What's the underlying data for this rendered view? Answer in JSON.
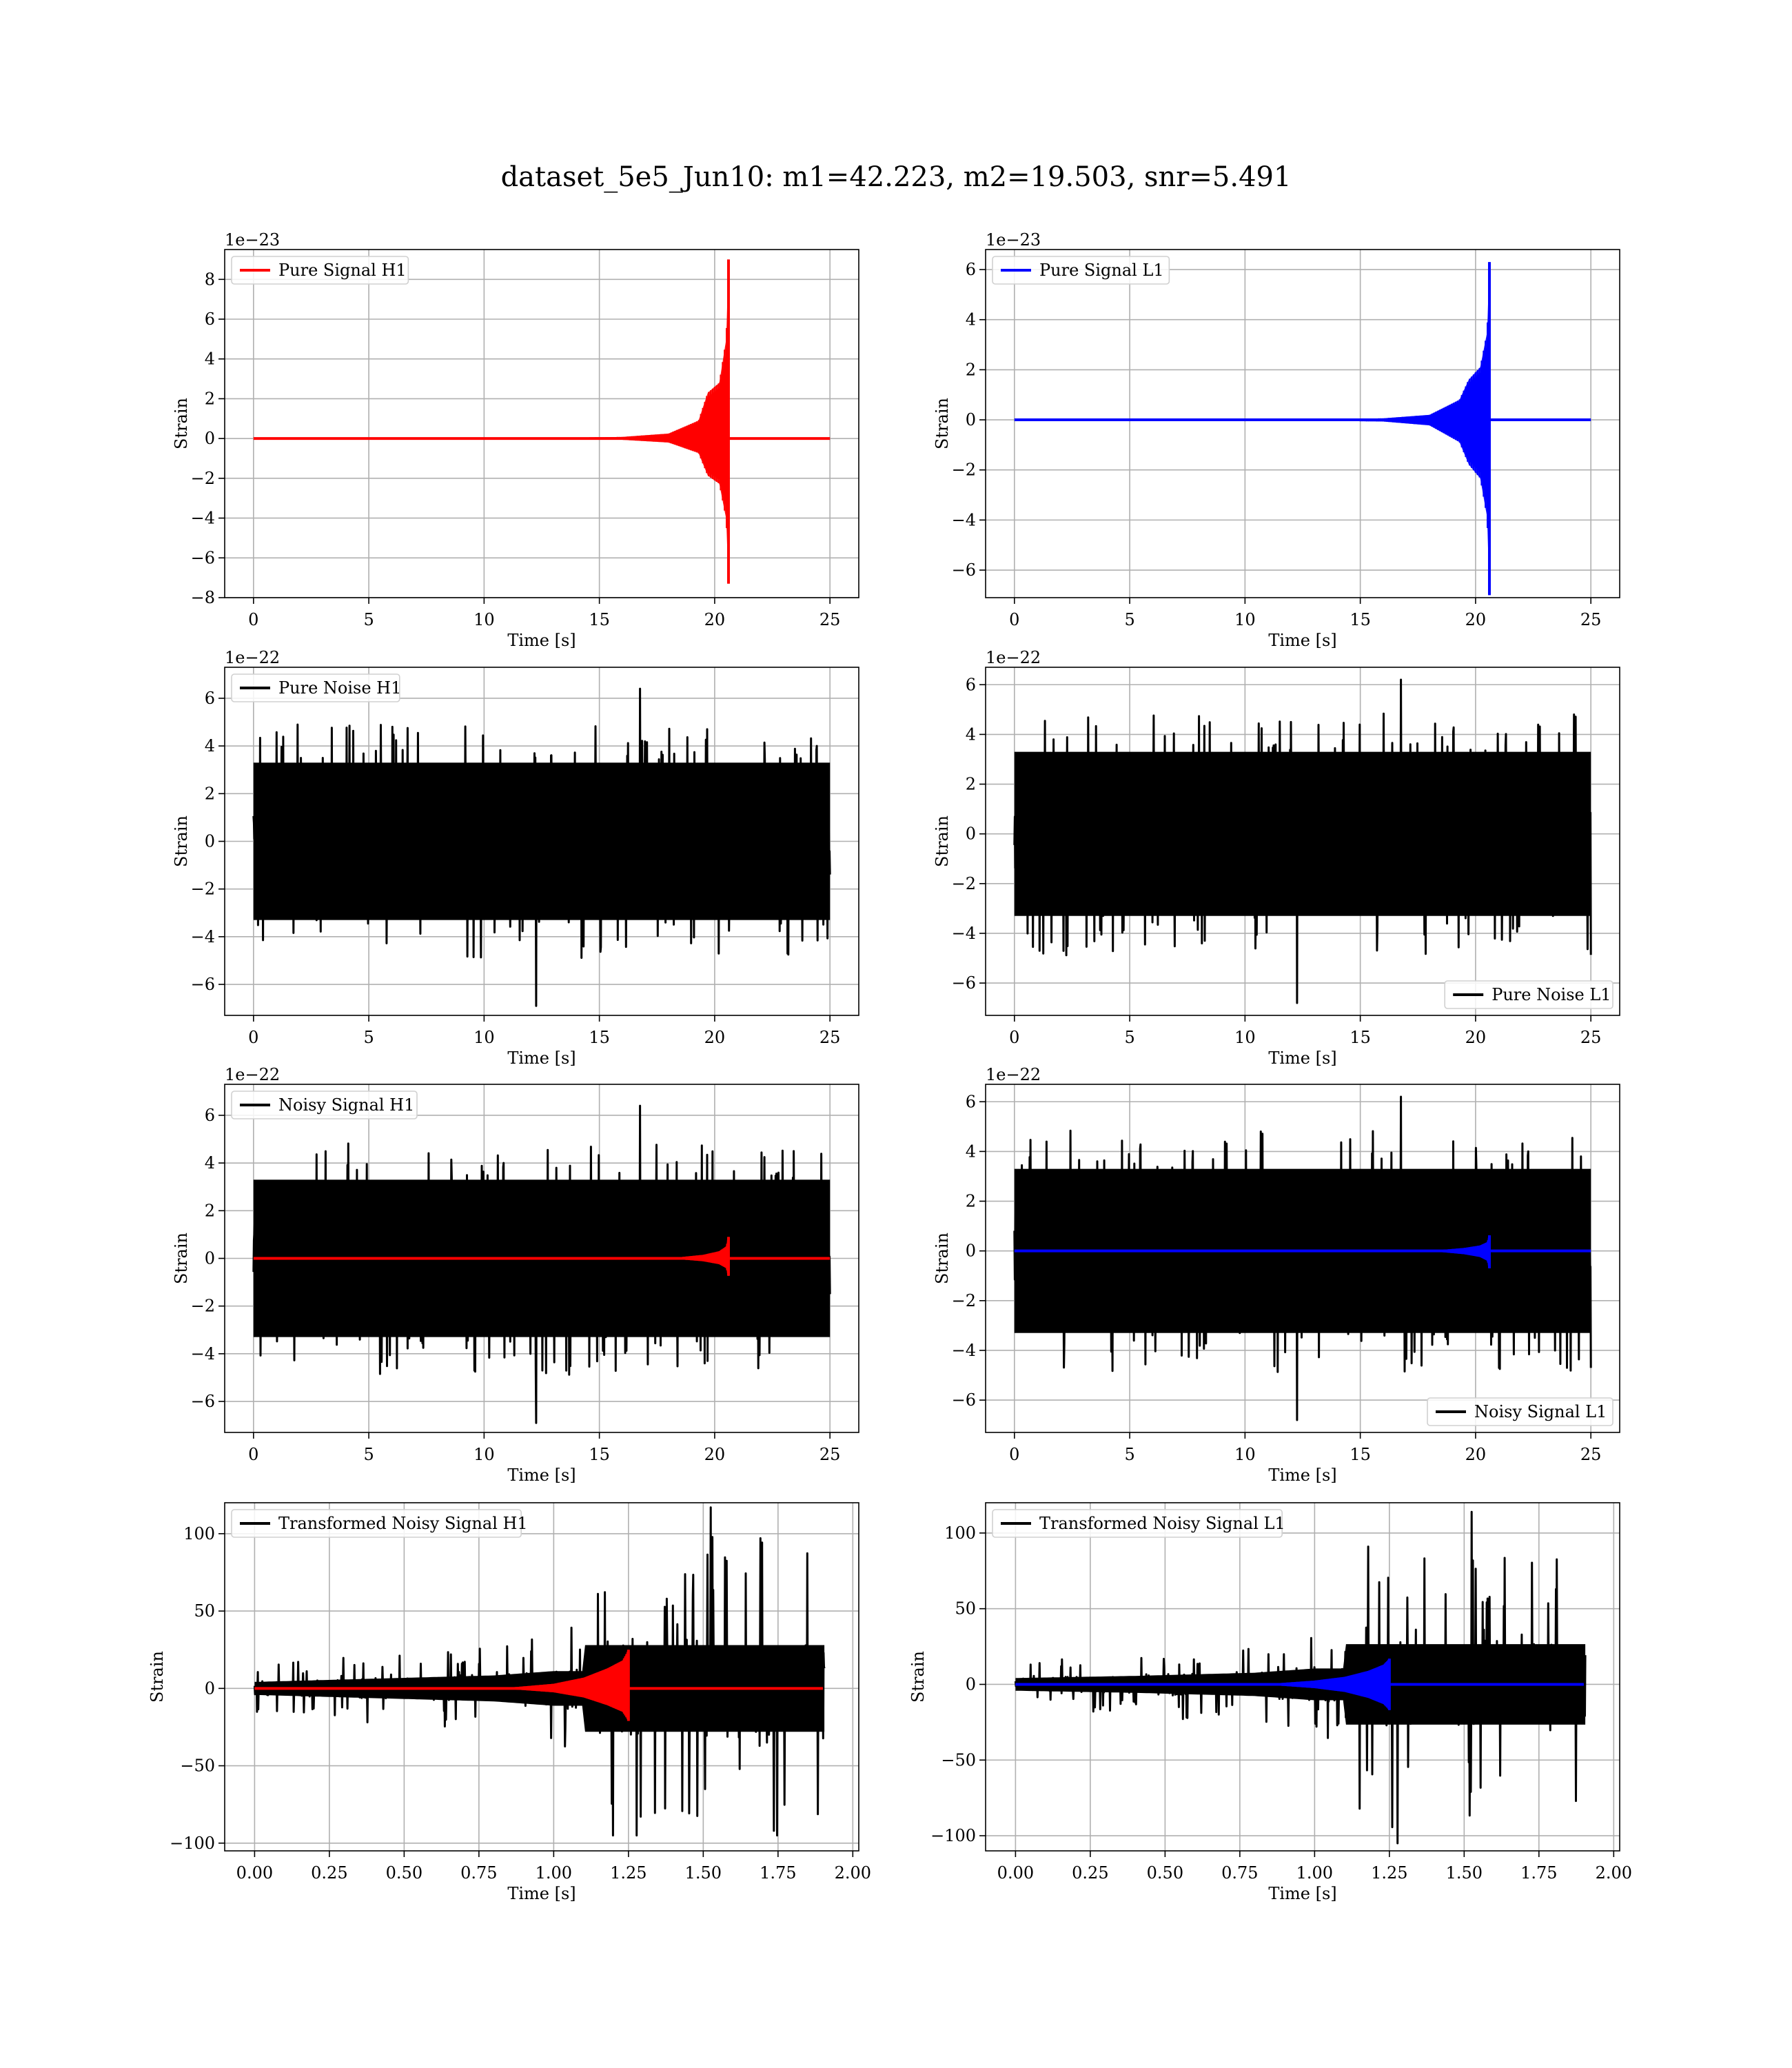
{
  "figure": {
    "title": "dataset_5e5_Jun10: m1=42.223, m2=19.503, snr=5.491",
    "background": "#ffffff"
  },
  "colors": {
    "h1_signal": "#ff0000",
    "l1_signal": "#0000ff",
    "noise": "#000000",
    "grid": "#b0b0b0"
  },
  "chart_data": [
    {
      "id": "pure-signal-h1",
      "type": "line",
      "xlabel": "Time [s]",
      "ylabel": "Strain",
      "offset_text": "1e−23",
      "xlim": [
        -1.25,
        26.25
      ],
      "ylim": [
        -8,
        9.5
      ],
      "xticks": [
        0,
        5,
        10,
        15,
        20,
        25
      ],
      "xtick_labels": [
        "0",
        "5",
        "10",
        "15",
        "20",
        "25"
      ],
      "yticks": [
        -8,
        -6,
        -4,
        -2,
        0,
        2,
        4,
        6,
        8
      ],
      "ytick_labels": [
        "−8",
        "−6",
        "−4",
        "−2",
        "0",
        "2",
        "4",
        "6",
        "8"
      ],
      "grid": true,
      "legend_position": "top-left",
      "series": [
        {
          "name": "Pure Signal H1",
          "color": "#ff0000",
          "kind": "chirp",
          "x_start": 0,
          "x_end": 25,
          "merger_time": 20.6,
          "peak_positive": 9.0,
          "peak_negative": -7.3,
          "envelope": [
            [
              12,
              0.02
            ],
            [
              16,
              0.08
            ],
            [
              18,
              0.25
            ],
            [
              19.3,
              0.9
            ],
            [
              19.7,
              2.3
            ],
            [
              20.2,
              2.8
            ],
            [
              20.5,
              5.0
            ],
            [
              20.6,
              9.0
            ]
          ]
        }
      ]
    },
    {
      "id": "pure-signal-l1",
      "type": "line",
      "xlabel": "Time [s]",
      "ylabel": "Strain",
      "offset_text": "1e−23",
      "xlim": [
        -1.25,
        26.25
      ],
      "ylim": [
        -7.1,
        6.8
      ],
      "xticks": [
        0,
        5,
        10,
        15,
        20,
        25
      ],
      "xtick_labels": [
        "0",
        "5",
        "10",
        "15",
        "20",
        "25"
      ],
      "yticks": [
        -6,
        -4,
        -2,
        0,
        2,
        4,
        6
      ],
      "ytick_labels": [
        "−6",
        "−4",
        "−2",
        "0",
        "2",
        "4",
        "6"
      ],
      "grid": true,
      "legend_position": "top-left",
      "series": [
        {
          "name": "Pure Signal L1",
          "color": "#0000ff",
          "kind": "chirp",
          "x_start": 0,
          "x_end": 25,
          "merger_time": 20.6,
          "peak_positive": 6.3,
          "peak_negative": -7.0,
          "envelope": [
            [
              12,
              0.02
            ],
            [
              16,
              0.06
            ],
            [
              18,
              0.2
            ],
            [
              19.3,
              0.8
            ],
            [
              19.7,
              1.6
            ],
            [
              20.2,
              2.1
            ],
            [
              20.5,
              3.5
            ],
            [
              20.6,
              6.3
            ]
          ]
        }
      ]
    },
    {
      "id": "pure-noise-h1",
      "type": "line",
      "xlabel": "Time [s]",
      "ylabel": "Strain",
      "offset_text": "1e−22",
      "xlim": [
        -1.25,
        26.25
      ],
      "ylim": [
        -7.3,
        7.3
      ],
      "xticks": [
        0,
        5,
        10,
        15,
        20,
        25
      ],
      "xtick_labels": [
        "0",
        "5",
        "10",
        "15",
        "20",
        "25"
      ],
      "yticks": [
        -6,
        -4,
        -2,
        0,
        2,
        4,
        6
      ],
      "ytick_labels": [
        "−6",
        "−4",
        "−2",
        "0",
        "2",
        "4",
        "6"
      ],
      "grid": true,
      "legend_position": "top-left",
      "series": [
        {
          "name": "Pure Noise H1",
          "color": "#000000",
          "kind": "noise",
          "x_start": 0,
          "x_end": 25,
          "band": 3.3,
          "peak_max": 6.4,
          "peak_min": -6.9
        }
      ]
    },
    {
      "id": "pure-noise-l1",
      "type": "line",
      "xlabel": "Time [s]",
      "ylabel": "Strain",
      "offset_text": "1e−22",
      "xlim": [
        -1.25,
        26.25
      ],
      "ylim": [
        -7.3,
        6.7
      ],
      "xticks": [
        0,
        5,
        10,
        15,
        20,
        25
      ],
      "xtick_labels": [
        "0",
        "5",
        "10",
        "15",
        "20",
        "25"
      ],
      "yticks": [
        -6,
        -4,
        -2,
        0,
        2,
        4,
        6
      ],
      "ytick_labels": [
        "−6",
        "−4",
        "−2",
        "0",
        "2",
        "4",
        "6"
      ],
      "grid": true,
      "legend_position": "bottom-right",
      "series": [
        {
          "name": "Pure Noise L1",
          "color": "#000000",
          "kind": "noise",
          "x_start": 0,
          "x_end": 25,
          "band": 3.3,
          "peak_max": 6.2,
          "peak_min": -6.8
        }
      ]
    },
    {
      "id": "noisy-signal-h1",
      "type": "line",
      "xlabel": "Time [s]",
      "ylabel": "Strain",
      "offset_text": "1e−22",
      "xlim": [
        -1.25,
        26.25
      ],
      "ylim": [
        -7.3,
        7.3
      ],
      "xticks": [
        0,
        5,
        10,
        15,
        20,
        25
      ],
      "xtick_labels": [
        "0",
        "5",
        "10",
        "15",
        "20",
        "25"
      ],
      "yticks": [
        -6,
        -4,
        -2,
        0,
        2,
        4,
        6
      ],
      "ytick_labels": [
        "−6",
        "−4",
        "−2",
        "0",
        "2",
        "4",
        "6"
      ],
      "grid": true,
      "legend_position": "top-left",
      "series": [
        {
          "name": "Noisy Signal H1",
          "color": "#000000",
          "kind": "noise",
          "x_start": 0,
          "x_end": 25,
          "band": 3.3,
          "peak_max": 6.4,
          "peak_min": -6.9
        },
        {
          "color": "#ff0000",
          "kind": "chirp",
          "x_start": 0,
          "x_end": 25,
          "merger_time": 20.6,
          "peak_positive": 0.9,
          "peak_negative": -0.73,
          "envelope": [
            [
              17,
              0.01
            ],
            [
              18.5,
              0.05
            ],
            [
              19.5,
              0.15
            ],
            [
              20.2,
              0.3
            ],
            [
              20.5,
              0.5
            ],
            [
              20.6,
              0.9
            ]
          ]
        }
      ]
    },
    {
      "id": "noisy-signal-l1",
      "type": "line",
      "xlabel": "Time [s]",
      "ylabel": "Strain",
      "offset_text": "1e−22",
      "xlim": [
        -1.25,
        26.25
      ],
      "ylim": [
        -7.3,
        6.7
      ],
      "xticks": [
        0,
        5,
        10,
        15,
        20,
        25
      ],
      "xtick_labels": [
        "0",
        "5",
        "10",
        "15",
        "20",
        "25"
      ],
      "yticks": [
        -6,
        -4,
        -2,
        0,
        2,
        4,
        6
      ],
      "ytick_labels": [
        "−6",
        "−4",
        "−2",
        "0",
        "2",
        "4",
        "6"
      ],
      "grid": true,
      "legend_position": "bottom-right",
      "series": [
        {
          "name": "Noisy Signal L1",
          "color": "#000000",
          "kind": "noise",
          "x_start": 0,
          "x_end": 25,
          "band": 3.3,
          "peak_max": 6.2,
          "peak_min": -6.8
        },
        {
          "color": "#0000ff",
          "kind": "chirp",
          "x_start": 0,
          "x_end": 25,
          "merger_time": 20.6,
          "peak_positive": 0.63,
          "peak_negative": -0.7,
          "envelope": [
            [
              17,
              0.01
            ],
            [
              18.5,
              0.04
            ],
            [
              19.5,
              0.12
            ],
            [
              20.2,
              0.22
            ],
            [
              20.5,
              0.35
            ],
            [
              20.6,
              0.63
            ]
          ]
        }
      ]
    },
    {
      "id": "transformed-h1",
      "type": "line",
      "xlabel": "Time [s]",
      "ylabel": "Strain",
      "offset_text": "",
      "xlim": [
        -0.1,
        2.02
      ],
      "ylim": [
        -105,
        120
      ],
      "xticks": [
        0,
        0.25,
        0.5,
        0.75,
        1.0,
        1.25,
        1.5,
        1.75,
        2.0
      ],
      "xtick_labels": [
        "0.00",
        "0.25",
        "0.50",
        "0.75",
        "1.00",
        "1.25",
        "1.50",
        "1.75",
        "2.00"
      ],
      "yticks": [
        -100,
        -50,
        0,
        50,
        100
      ],
      "ytick_labels": [
        "−100",
        "−50",
        "0",
        "50",
        "100"
      ],
      "grid": true,
      "legend_position": "top-left",
      "series": [
        {
          "name": "Transformed Noisy Signal H1",
          "color": "#000000",
          "kind": "transformed-noise",
          "x_start": 0,
          "x_end": 1.905,
          "step_time": 1.1,
          "band_before": [
            [
              0,
              6
            ],
            [
              0.4,
              9
            ],
            [
              0.8,
              12
            ],
            [
              1.0,
              16
            ]
          ],
          "band_after": 40,
          "peak_max": 117,
          "peak_min": -95
        },
        {
          "color": "#ff0000",
          "kind": "chirp",
          "x_start": 0,
          "x_end": 1.9,
          "merger_time": 1.25,
          "peak_positive": 25,
          "peak_negative": -21,
          "envelope": [
            [
              0.85,
              0.5
            ],
            [
              1.0,
              3
            ],
            [
              1.1,
              7
            ],
            [
              1.18,
              13
            ],
            [
              1.23,
              18
            ],
            [
              1.25,
              25
            ]
          ]
        }
      ]
    },
    {
      "id": "transformed-l1",
      "type": "line",
      "xlabel": "Time [s]",
      "ylabel": "Strain",
      "offset_text": "",
      "xlim": [
        -0.1,
        2.02
      ],
      "ylim": [
        -110,
        120
      ],
      "xticks": [
        0,
        0.25,
        0.5,
        0.75,
        1.0,
        1.25,
        1.5,
        1.75,
        2.0
      ],
      "xtick_labels": [
        "0.00",
        "0.25",
        "0.50",
        "0.75",
        "1.00",
        "1.25",
        "1.50",
        "1.75",
        "2.00"
      ],
      "yticks": [
        -100,
        -50,
        0,
        50,
        100
      ],
      "ytick_labels": [
        "−100",
        "−50",
        "0",
        "50",
        "100"
      ],
      "grid": true,
      "legend_position": "top-left",
      "series": [
        {
          "name": "Transformed Noisy Signal L1",
          "color": "#000000",
          "kind": "transformed-noise",
          "x_start": 0,
          "x_end": 1.905,
          "step_time": 1.1,
          "band_before": [
            [
              0,
              6
            ],
            [
              0.4,
              8
            ],
            [
              0.8,
              11
            ],
            [
              1.0,
              15
            ]
          ],
          "band_after": 38,
          "peak_max": 114,
          "peak_min": -105
        },
        {
          "color": "#0000ff",
          "kind": "chirp",
          "x_start": 0,
          "x_end": 1.9,
          "merger_time": 1.25,
          "peak_positive": 17,
          "peak_negative": -17,
          "envelope": [
            [
              0.85,
              0.4
            ],
            [
              1.0,
              2.5
            ],
            [
              1.1,
              5
            ],
            [
              1.18,
              9
            ],
            [
              1.23,
              13
            ],
            [
              1.25,
              17
            ]
          ]
        }
      ]
    }
  ]
}
